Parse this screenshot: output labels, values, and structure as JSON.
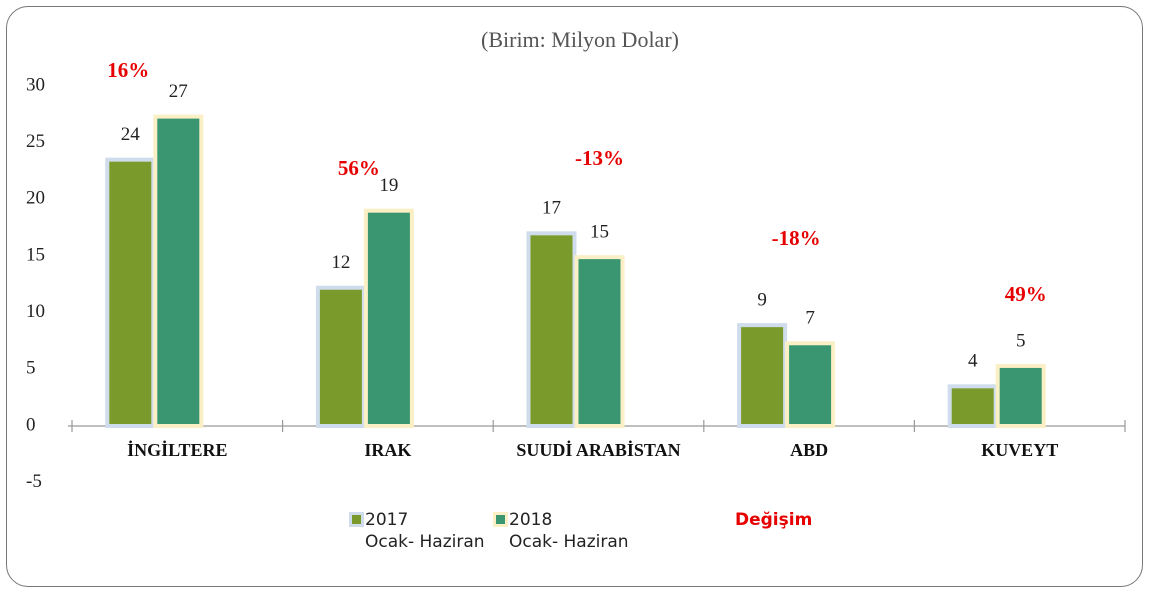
{
  "chart_data": {
    "type": "bar",
    "subtitle": "(Birim: Milyon Dolar)",
    "categories": [
      "İNGİLTERE",
      "IRAK",
      "SUUDİ ARABİSTAN",
      "ABD",
      "KUVEYT"
    ],
    "series": [
      {
        "name": "2017\nOcak- Haziran",
        "color": "#7b9a2c",
        "border": "#cfdcec",
        "values": [
          23.5,
          12.2,
          17.0,
          8.9,
          3.5
        ],
        "value_labels": [
          "24",
          "12",
          "17",
          "9",
          "4"
        ]
      },
      {
        "name": "2018\nOcak- Haziran",
        "color": "#3a9670",
        "border": "#fbefc6",
        "values": [
          27.3,
          19.0,
          14.9,
          7.3,
          5.3
        ],
        "value_labels": [
          "27",
          "19",
          "15",
          "7",
          "5"
        ]
      },
      {
        "name": "Değişim",
        "color": "#e60000",
        "values": [
          16,
          56,
          -13,
          -18,
          49
        ],
        "value_labels": [
          "16%",
          "56%",
          "-13%",
          "-18%",
          "49%"
        ]
      }
    ],
    "ylim": [
      -5,
      30
    ],
    "yticks": [
      -5,
      0,
      5,
      10,
      15,
      20,
      25,
      30
    ],
    "grid": false
  }
}
